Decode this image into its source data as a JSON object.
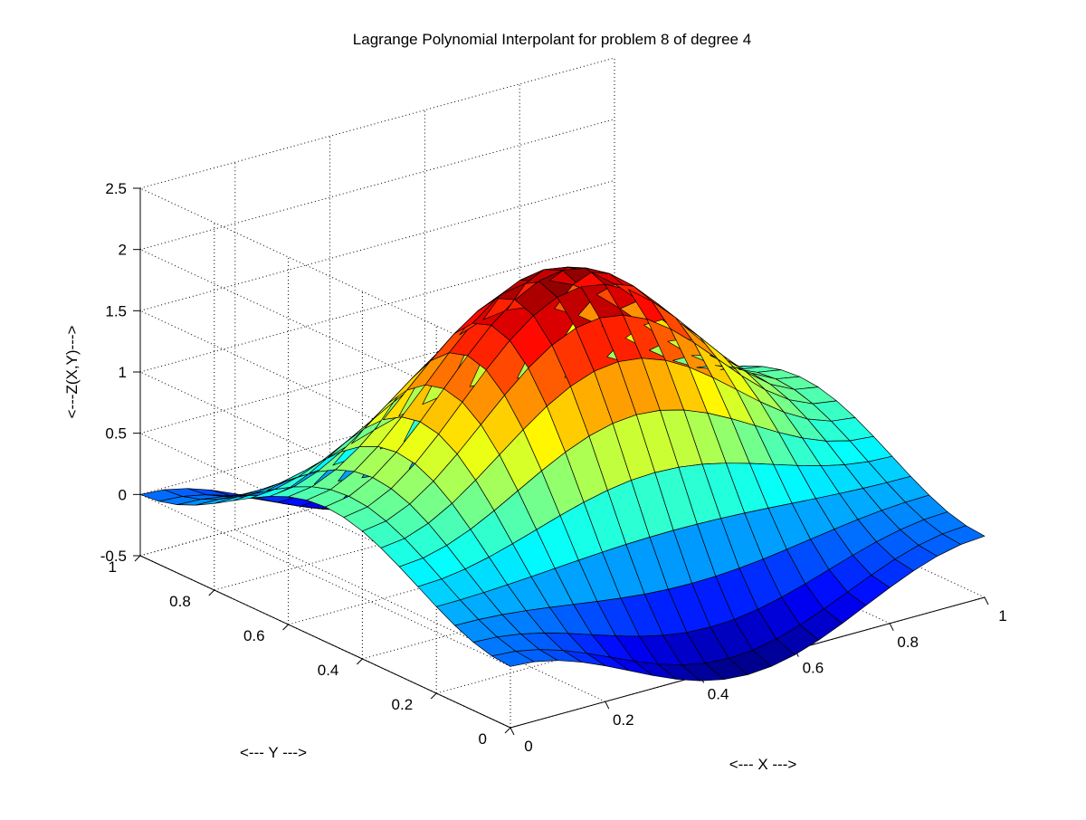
{
  "chart_data": {
    "type": "surface",
    "title": "Lagrange Polynomial Interpolant for problem 8 of degree 4",
    "xlabel": "<--- X --->",
    "ylabel": "<--- Y --->",
    "zlabel": "<---Z(X,Y)--->",
    "xlim": [
      0,
      1
    ],
    "ylim": [
      0,
      1
    ],
    "zlim": [
      -0.5,
      2.5
    ],
    "xticks": [
      "0",
      "0.2",
      "0.4",
      "0.6",
      "0.8",
      "1"
    ],
    "yticks": [
      "0",
      "0.2",
      "0.4",
      "0.6",
      "0.8",
      "1"
    ],
    "zticks": [
      "-0.5",
      "0",
      "0.5",
      "1",
      "1.5",
      "2",
      "2.5"
    ],
    "grid": true,
    "colormap": "jet",
    "grid_points_per_axis": 21,
    "function": "Z(X,Y) = [1 - cos(2*pi*X)] * [1 - cos(2*pi*Y)] / 2 + 0.3*[cos(2*pi*X) - cos(2*pi*Y)]",
    "peak": {
      "x": 0.5,
      "y": 0.5,
      "z": 2.0
    },
    "colors": {
      "background": "#ffffff",
      "grid": "#000000",
      "edge": "#000000"
    }
  }
}
